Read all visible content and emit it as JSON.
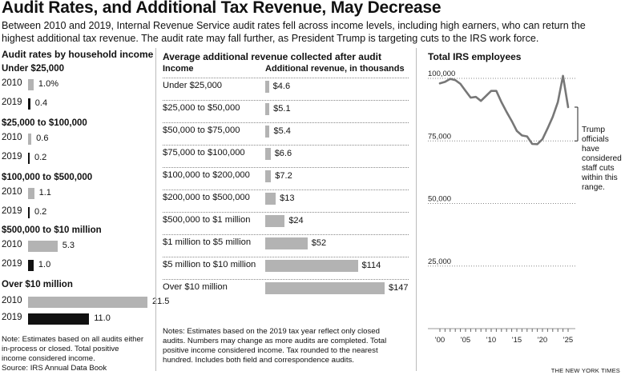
{
  "title": "Audit Rates, and Additional Tax Revenue, May Decrease",
  "subtitle": "Between 2010 and 2019, Internal Revenue Service audit rates fell across income levels, including high earners, who can return the highest additional tax revenue. The audit rate may fall further, as President Trump is targeting cuts to the IRS work force.",
  "source": "Source: IRS Annual Data Book",
  "credit": "THE NEW YORK TIMES",
  "colors": {
    "bar_2010": "#b3b3b3",
    "bar_2019": "#111111",
    "revenue_bar": "#b3b3b3",
    "line": "#777777"
  },
  "chart_data": [
    {
      "type": "bar",
      "title": "Audit rates by household income",
      "years": [
        "2010",
        "2019"
      ],
      "groups": [
        {
          "label": "Under $25,000",
          "values": [
            1.0,
            0.4
          ],
          "labels": [
            "1.0%",
            "0.4"
          ]
        },
        {
          "label": "$25,000 to $100,000",
          "values": [
            0.6,
            0.2
          ],
          "labels": [
            "0.6",
            "0.2"
          ]
        },
        {
          "label": "$100,000 to $500,000",
          "values": [
            1.1,
            0.2
          ],
          "labels": [
            "1.1",
            "0.2"
          ]
        },
        {
          "label": "$500,000 to $10 million",
          "values": [
            5.3,
            1.0
          ],
          "labels": [
            "5.3",
            "1.0"
          ]
        },
        {
          "label": "Over $10 million",
          "values": [
            21.5,
            11.0
          ],
          "labels": [
            "21.5",
            "11.0"
          ]
        }
      ],
      "note": "Note: Estimates based on all audits either in-process or closed. Total positive income considered income."
    },
    {
      "type": "bar",
      "title": "Average additional revenue collected after audit",
      "col_income": "Income",
      "col_revenue": "Additional revenue, in thousands",
      "categories": [
        "Under $25,000",
        "$25,000 to $50,000",
        "$50,000 to $75,000",
        "$75,000 to $100,000",
        "$100,000 to $200,000",
        "$200,000 to $500,000",
        "$500,000 to $1 million",
        "$1 million to $5 million",
        "$5 million to $10 million",
        "Over $10 million"
      ],
      "values": [
        4.6,
        5.1,
        5.4,
        6.6,
        7.2,
        13,
        24,
        52,
        114,
        147
      ],
      "labels": [
        "$4.6",
        "$5.1",
        "$5.4",
        "$6.6",
        "$7.2",
        "$13",
        "$24",
        "$52",
        "$114",
        "$147"
      ],
      "note": "Notes: Estimates based on the 2019 tax year reflect only closed audits. Numbers may change as more audits are completed. Total positive income considered income. Tax rounded to the nearest hundred. Includes both field and correspondence audits."
    },
    {
      "type": "line",
      "title": "Total IRS employees",
      "x": [
        2000,
        2001,
        2002,
        2003,
        2004,
        2005,
        2006,
        2007,
        2008,
        2009,
        2010,
        2011,
        2012,
        2013,
        2014,
        2015,
        2016,
        2017,
        2018,
        2019,
        2020,
        2021,
        2022,
        2023,
        2024,
        2025
      ],
      "y": [
        98000,
        98600,
        99800,
        99300,
        97800,
        95000,
        92300,
        92600,
        91000,
        93000,
        95000,
        95000,
        90500,
        86600,
        83000,
        79000,
        77200,
        76800,
        73800,
        73700,
        75700,
        80000,
        84600,
        90500,
        101000,
        88500
      ],
      "xlim": [
        1999,
        2026
      ],
      "ylim": [
        0,
        100000
      ],
      "yticks": [
        25000,
        50000,
        75000,
        100000
      ],
      "ytick_labels": [
        "25,000",
        "50,000",
        "75,000",
        "100,000"
      ],
      "xticks": [
        2000,
        2005,
        2010,
        2015,
        2020,
        2025
      ],
      "xtick_labels": [
        "'00",
        "'05",
        "'10",
        "'15",
        "'20",
        "'25"
      ],
      "annotation": "Trump officials have considered staff cuts within this range.",
      "annotation_range": [
        75000,
        88500
      ]
    }
  ]
}
